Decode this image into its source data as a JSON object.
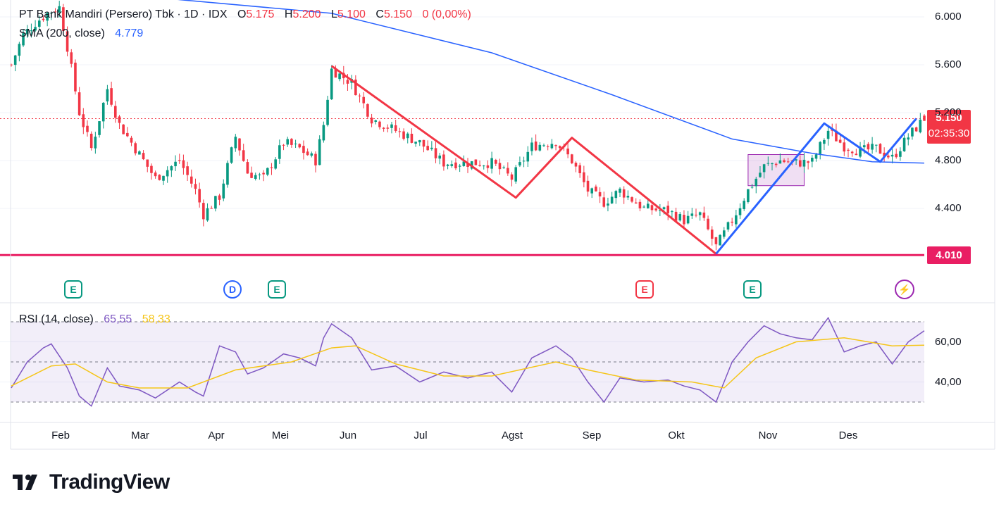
{
  "legend": {
    "symbol": "PT Bank Mandiri (Persero) Tbk · 1D · IDX",
    "open_label": "O",
    "open": "5.175",
    "high_label": "H",
    "high": "5.200",
    "low_label": "L",
    "low": "5.100",
    "close_label": "C",
    "close": "5.150",
    "change": "0 (0,00%)",
    "sma_label": "SMA (200, close)",
    "sma_value": "4.779",
    "rsi_label": "RSI (14, close)",
    "rsi_value": "65,55",
    "rsi_ma_value": "58,33"
  },
  "price_tags": {
    "last": "5.150",
    "countdown": "02:35:30",
    "level": "4.010"
  },
  "badges": [
    {
      "label": "E",
      "kind": "earnings"
    },
    {
      "label": "D",
      "kind": "dividend"
    },
    {
      "label": "E",
      "kind": "earnings"
    },
    {
      "label": "E",
      "kind": "earnings-miss"
    },
    {
      "label": "E",
      "kind": "earnings"
    },
    {
      "label": "⚡",
      "kind": "event"
    }
  ],
  "brand": {
    "name": "TradingView"
  },
  "colors": {
    "up": "#089981",
    "down": "#f23645",
    "sma": "#2962ff",
    "zigzag_red": "#f23645",
    "zigzag_blue": "#2962ff",
    "level": "#e91e63",
    "rsi": "#7e57c2",
    "rsi_ma": "#f5c518"
  },
  "chart_data": {
    "type": "candlestick",
    "x_labels": [
      "Feb",
      "Mar",
      "Apr",
      "Mei",
      "Jun",
      "Jul",
      "Agst",
      "Sep",
      "Okt",
      "Nov",
      "Des"
    ],
    "y_ticks": [
      "6.000",
      "5.600",
      "5.200",
      "4.800",
      "4.400"
    ],
    "y_range": [
      4000,
      6050
    ],
    "price_path": [
      {
        "x": 0,
        "y": 5600
      },
      {
        "x": 3,
        "y": 5850
      },
      {
        "x": 6,
        "y": 5950
      },
      {
        "x": 9,
        "y": 6030
      },
      {
        "x": 12,
        "y": 6080
      },
      {
        "x": 14,
        "y": 5750
      },
      {
        "x": 17,
        "y": 5200
      },
      {
        "x": 20,
        "y": 4900
      },
      {
        "x": 24,
        "y": 5400
      },
      {
        "x": 27,
        "y": 5100
      },
      {
        "x": 32,
        "y": 4850
      },
      {
        "x": 36,
        "y": 4650
      },
      {
        "x": 42,
        "y": 4800
      },
      {
        "x": 46,
        "y": 4550
      },
      {
        "x": 48,
        "y": 4350
      },
      {
        "x": 52,
        "y": 4500
      },
      {
        "x": 56,
        "y": 5000
      },
      {
        "x": 59,
        "y": 4700
      },
      {
        "x": 63,
        "y": 4650
      },
      {
        "x": 68,
        "y": 4950
      },
      {
        "x": 72,
        "y": 4900
      },
      {
        "x": 76,
        "y": 4800
      },
      {
        "x": 78,
        "y": 5100
      },
      {
        "x": 80,
        "y": 5560
      },
      {
        "x": 85,
        "y": 5450
      },
      {
        "x": 90,
        "y": 5150
      },
      {
        "x": 96,
        "y": 5050
      },
      {
        "x": 102,
        "y": 4950
      },
      {
        "x": 108,
        "y": 4780
      },
      {
        "x": 114,
        "y": 4780
      },
      {
        "x": 120,
        "y": 4780
      },
      {
        "x": 125,
        "y": 4650
      },
      {
        "x": 130,
        "y": 4920
      },
      {
        "x": 136,
        "y": 4960
      },
      {
        "x": 140,
        "y": 4800
      },
      {
        "x": 144,
        "y": 4550
      },
      {
        "x": 148,
        "y": 4450
      },
      {
        "x": 152,
        "y": 4550
      },
      {
        "x": 158,
        "y": 4400
      },
      {
        "x": 164,
        "y": 4380
      },
      {
        "x": 168,
        "y": 4300
      },
      {
        "x": 172,
        "y": 4350
      },
      {
        "x": 176,
        "y": 4080
      },
      {
        "x": 180,
        "y": 4300
      },
      {
        "x": 184,
        "y": 4550
      },
      {
        "x": 188,
        "y": 4750
      },
      {
        "x": 192,
        "y": 4800
      },
      {
        "x": 196,
        "y": 4780
      },
      {
        "x": 200,
        "y": 4790
      },
      {
        "x": 204,
        "y": 5050
      },
      {
        "x": 208,
        "y": 4920
      },
      {
        "x": 212,
        "y": 4880
      },
      {
        "x": 216,
        "y": 4900
      },
      {
        "x": 220,
        "y": 4820
      },
      {
        "x": 224,
        "y": 5000
      },
      {
        "x": 228,
        "y": 5150
      }
    ],
    "sma200": [
      {
        "x": 0,
        "y": 6180
      },
      {
        "x": 40,
        "y": 6150
      },
      {
        "x": 80,
        "y": 6030
      },
      {
        "x": 120,
        "y": 5700
      },
      {
        "x": 150,
        "y": 5350
      },
      {
        "x": 180,
        "y": 4980
      },
      {
        "x": 200,
        "y": 4860
      },
      {
        "x": 215,
        "y": 4790
      },
      {
        "x": 228,
        "y": 4779
      }
    ],
    "zigzag_red": [
      {
        "x": 80,
        "y": 5590
      },
      {
        "x": 126,
        "y": 4490
      },
      {
        "x": 140,
        "y": 4990
      },
      {
        "x": 176,
        "y": 4020
      }
    ],
    "zigzag_blue": [
      {
        "x": 176,
        "y": 4020
      },
      {
        "x": 203,
        "y": 5110
      },
      {
        "x": 217,
        "y": 4790
      },
      {
        "x": 226,
        "y": 5150
      }
    ],
    "highlight_box": {
      "x_start": 184,
      "x_end": 198,
      "y_top": 4850,
      "y_bottom": 4590
    },
    "level_line": 4010,
    "rsi": {
      "y_ticks": [
        "60,00",
        "40,00"
      ],
      "y_range": [
        25,
        75
      ],
      "band": [
        30,
        70
      ],
      "values": [
        {
          "x": 0,
          "y": 37
        },
        {
          "x": 4,
          "y": 50
        },
        {
          "x": 8,
          "y": 57
        },
        {
          "x": 10,
          "y": 59
        },
        {
          "x": 14,
          "y": 47
        },
        {
          "x": 17,
          "y": 33
        },
        {
          "x": 20,
          "y": 28
        },
        {
          "x": 24,
          "y": 47
        },
        {
          "x": 27,
          "y": 38
        },
        {
          "x": 32,
          "y": 36
        },
        {
          "x": 36,
          "y": 32
        },
        {
          "x": 42,
          "y": 40
        },
        {
          "x": 46,
          "y": 35
        },
        {
          "x": 48,
          "y": 33
        },
        {
          "x": 52,
          "y": 58
        },
        {
          "x": 56,
          "y": 55
        },
        {
          "x": 59,
          "y": 44
        },
        {
          "x": 63,
          "y": 47
        },
        {
          "x": 68,
          "y": 54
        },
        {
          "x": 72,
          "y": 52
        },
        {
          "x": 76,
          "y": 48
        },
        {
          "x": 78,
          "y": 62
        },
        {
          "x": 80,
          "y": 69
        },
        {
          "x": 85,
          "y": 62
        },
        {
          "x": 90,
          "y": 46
        },
        {
          "x": 96,
          "y": 48
        },
        {
          "x": 102,
          "y": 40
        },
        {
          "x": 108,
          "y": 45
        },
        {
          "x": 114,
          "y": 42
        },
        {
          "x": 120,
          "y": 45
        },
        {
          "x": 125,
          "y": 35
        },
        {
          "x": 130,
          "y": 52
        },
        {
          "x": 136,
          "y": 58
        },
        {
          "x": 140,
          "y": 52
        },
        {
          "x": 144,
          "y": 40
        },
        {
          "x": 148,
          "y": 30
        },
        {
          "x": 152,
          "y": 42
        },
        {
          "x": 158,
          "y": 40
        },
        {
          "x": 164,
          "y": 41
        },
        {
          "x": 168,
          "y": 38
        },
        {
          "x": 172,
          "y": 36
        },
        {
          "x": 176,
          "y": 30
        },
        {
          "x": 180,
          "y": 50
        },
        {
          "x": 184,
          "y": 60
        },
        {
          "x": 188,
          "y": 68
        },
        {
          "x": 192,
          "y": 64
        },
        {
          "x": 196,
          "y": 62
        },
        {
          "x": 200,
          "y": 61
        },
        {
          "x": 204,
          "y": 72
        },
        {
          "x": 208,
          "y": 55
        },
        {
          "x": 212,
          "y": 58
        },
        {
          "x": 216,
          "y": 60
        },
        {
          "x": 220,
          "y": 49
        },
        {
          "x": 224,
          "y": 60
        },
        {
          "x": 228,
          "y": 65.55
        }
      ],
      "ma": [
        {
          "x": 0,
          "y": 38
        },
        {
          "x": 10,
          "y": 48
        },
        {
          "x": 16,
          "y": 49
        },
        {
          "x": 24,
          "y": 40
        },
        {
          "x": 32,
          "y": 37
        },
        {
          "x": 44,
          "y": 37
        },
        {
          "x": 56,
          "y": 46
        },
        {
          "x": 70,
          "y": 50
        },
        {
          "x": 80,
          "y": 57
        },
        {
          "x": 86,
          "y": 58
        },
        {
          "x": 96,
          "y": 49
        },
        {
          "x": 108,
          "y": 43
        },
        {
          "x": 120,
          "y": 43
        },
        {
          "x": 136,
          "y": 50
        },
        {
          "x": 144,
          "y": 46
        },
        {
          "x": 156,
          "y": 41
        },
        {
          "x": 170,
          "y": 40
        },
        {
          "x": 178,
          "y": 37
        },
        {
          "x": 186,
          "y": 52
        },
        {
          "x": 196,
          "y": 60
        },
        {
          "x": 208,
          "y": 62
        },
        {
          "x": 220,
          "y": 58
        },
        {
          "x": 228,
          "y": 58.33
        }
      ]
    }
  }
}
